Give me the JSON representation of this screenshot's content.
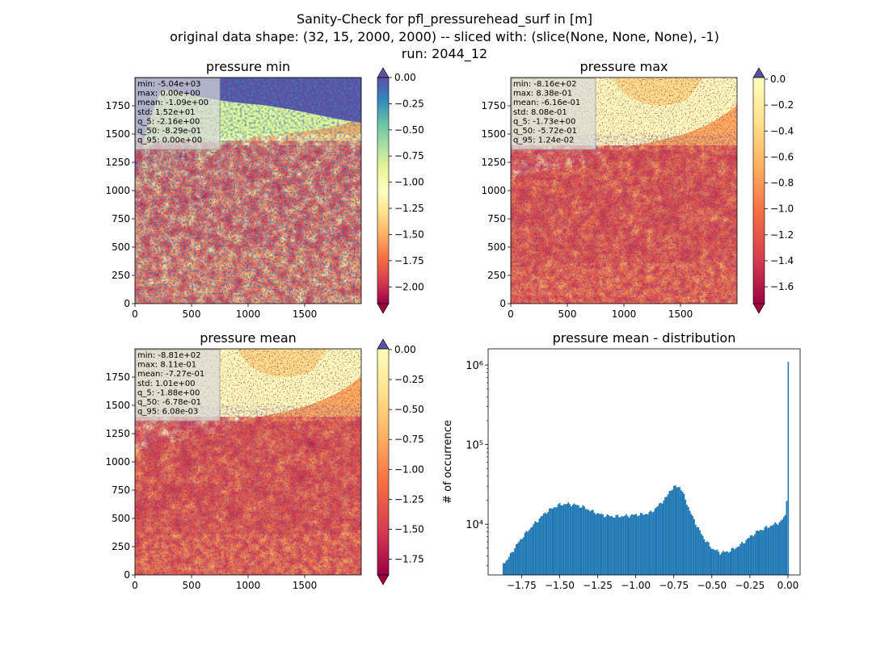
{
  "figure": {
    "title_line1": "Sanity-Check for pfl_pressurehead_surf in [m]",
    "title_line2": "original data shape: (32, 15, 2000, 2000) -- sliced with: (slice(None, None, None), -1)",
    "title_line3": "run: 2044_12"
  },
  "colormap": "Spectral",
  "chart_data": [
    {
      "type": "heatmap",
      "title": "pressure min",
      "x_ticks": [
        "0",
        "500",
        "1000",
        "1500"
      ],
      "y_ticks": [
        "0",
        "250",
        "500",
        "750",
        "1000",
        "1250",
        "1500",
        "1750"
      ],
      "xlim": [
        0,
        2000
      ],
      "ylim": [
        0,
        2000
      ],
      "colorbar": {
        "ticks": [
          "0.00",
          "−0.25",
          "−0.50",
          "−0.75",
          "−1.00",
          "−1.25",
          "−1.50",
          "−1.75",
          "−2.00"
        ],
        "tick_values": [
          0,
          -0.25,
          -0.5,
          -0.75,
          -1.0,
          -1.25,
          -1.5,
          -1.75,
          -2.0
        ],
        "range": [
          -2.16,
          0.0
        ],
        "extend": "both"
      },
      "stats": [
        "min: -5.04e+03",
        "max: 0.00e+00",
        "mean: -1.09e+00",
        "std: 1.52e+01",
        "q_5: -2.16e+00",
        "q_50: -8.29e-01",
        "q_95: 0.00e+00"
      ]
    },
    {
      "type": "heatmap",
      "title": "pressure max",
      "x_ticks": [
        "0",
        "500",
        "1000",
        "1500"
      ],
      "y_ticks": [
        "0",
        "250",
        "500",
        "750",
        "1000",
        "1250",
        "1500",
        "1750"
      ],
      "xlim": [
        0,
        2000
      ],
      "ylim": [
        0,
        2000
      ],
      "colorbar": {
        "ticks": [
          "0.0",
          "−0.2",
          "−0.4",
          "−0.6",
          "−0.8",
          "−1.0",
          "−1.2",
          "−1.4",
          "−1.6"
        ],
        "tick_values": [
          0,
          -0.2,
          -0.4,
          -0.6,
          -0.8,
          -1.0,
          -1.2,
          -1.4,
          -1.6
        ],
        "range": [
          -1.73,
          0.0124
        ],
        "extend": "both"
      },
      "stats": [
        "min: -8.16e+02",
        "max: 8.38e-01",
        "mean: -6.16e-01",
        "std: 8.08e-01",
        "q_5: -1.73e+00",
        "q_50: -5.72e-01",
        "q_95: 1.24e-02"
      ]
    },
    {
      "type": "heatmap",
      "title": "pressure mean",
      "x_ticks": [
        "0",
        "500",
        "1000",
        "1500"
      ],
      "y_ticks": [
        "0",
        "250",
        "500",
        "750",
        "1000",
        "1250",
        "1500",
        "1750"
      ],
      "xlim": [
        0,
        2000
      ],
      "ylim": [
        0,
        2000
      ],
      "colorbar": {
        "ticks": [
          "0.00",
          "−0.25",
          "−0.50",
          "−0.75",
          "−1.00",
          "−1.25",
          "−1.50",
          "−1.75"
        ],
        "tick_values": [
          0,
          -0.25,
          -0.5,
          -0.75,
          -1.0,
          -1.25,
          -1.5,
          -1.75
        ],
        "range": [
          -1.88,
          0.00608
        ],
        "extend": "both"
      },
      "stats": [
        "min: -8.81e+02",
        "max: 8.11e-01",
        "mean: -7.27e-01",
        "std: 1.01e+00",
        "q_5: -1.88e+00",
        "q_50: -6.78e-01",
        "q_95: 6.08e-03"
      ]
    },
    {
      "type": "bar",
      "title": "pressure mean - distribution",
      "ylabel": "# of occurrence",
      "xlabel": "",
      "yscale": "log",
      "xlim": [
        -1.97,
        0.08
      ],
      "ylim": [
        2300,
        1600000
      ],
      "x_ticks": [
        "−1.75",
        "−1.50",
        "−1.25",
        "−1.00",
        "−0.75",
        "−0.50",
        "−0.25",
        "0.00"
      ],
      "x_tick_values": [
        -1.75,
        -1.5,
        -1.25,
        -1.0,
        -0.75,
        -0.5,
        -0.25,
        0.0
      ],
      "y_ticks": [
        "10⁴",
        "10⁵",
        "10⁶"
      ],
      "y_tick_values": [
        10000,
        100000,
        1000000
      ],
      "color": "#1f77b4",
      "bin_width": 0.0095,
      "x": [
        -1.875,
        -1.85,
        -1.8,
        -1.75,
        -1.7,
        -1.65,
        -1.6,
        -1.55,
        -1.5,
        -1.45,
        -1.4,
        -1.35,
        -1.3,
        -1.25,
        -1.2,
        -1.15,
        -1.1,
        -1.05,
        -1.0,
        -0.95,
        -0.9,
        -0.85,
        -0.8,
        -0.78,
        -0.75,
        -0.72,
        -0.7,
        -0.68,
        -0.65,
        -0.6,
        -0.55,
        -0.5,
        -0.45,
        -0.4,
        -0.35,
        -0.3,
        -0.25,
        -0.2,
        -0.15,
        -0.1,
        -0.05,
        -0.02,
        -0.005,
        0.0
      ],
      "values": [
        3300,
        3500,
        5000,
        6800,
        8800,
        11000,
        13800,
        16000,
        17700,
        18000,
        17500,
        16400,
        14800,
        13500,
        12800,
        12500,
        12600,
        12800,
        13200,
        13300,
        14200,
        17500,
        22000,
        26500,
        29500,
        30000,
        26000,
        21000,
        14500,
        9200,
        6300,
        4900,
        4400,
        4500,
        5000,
        5800,
        7000,
        8200,
        9000,
        9800,
        10800,
        13000,
        29000,
        1100000
      ]
    }
  ]
}
